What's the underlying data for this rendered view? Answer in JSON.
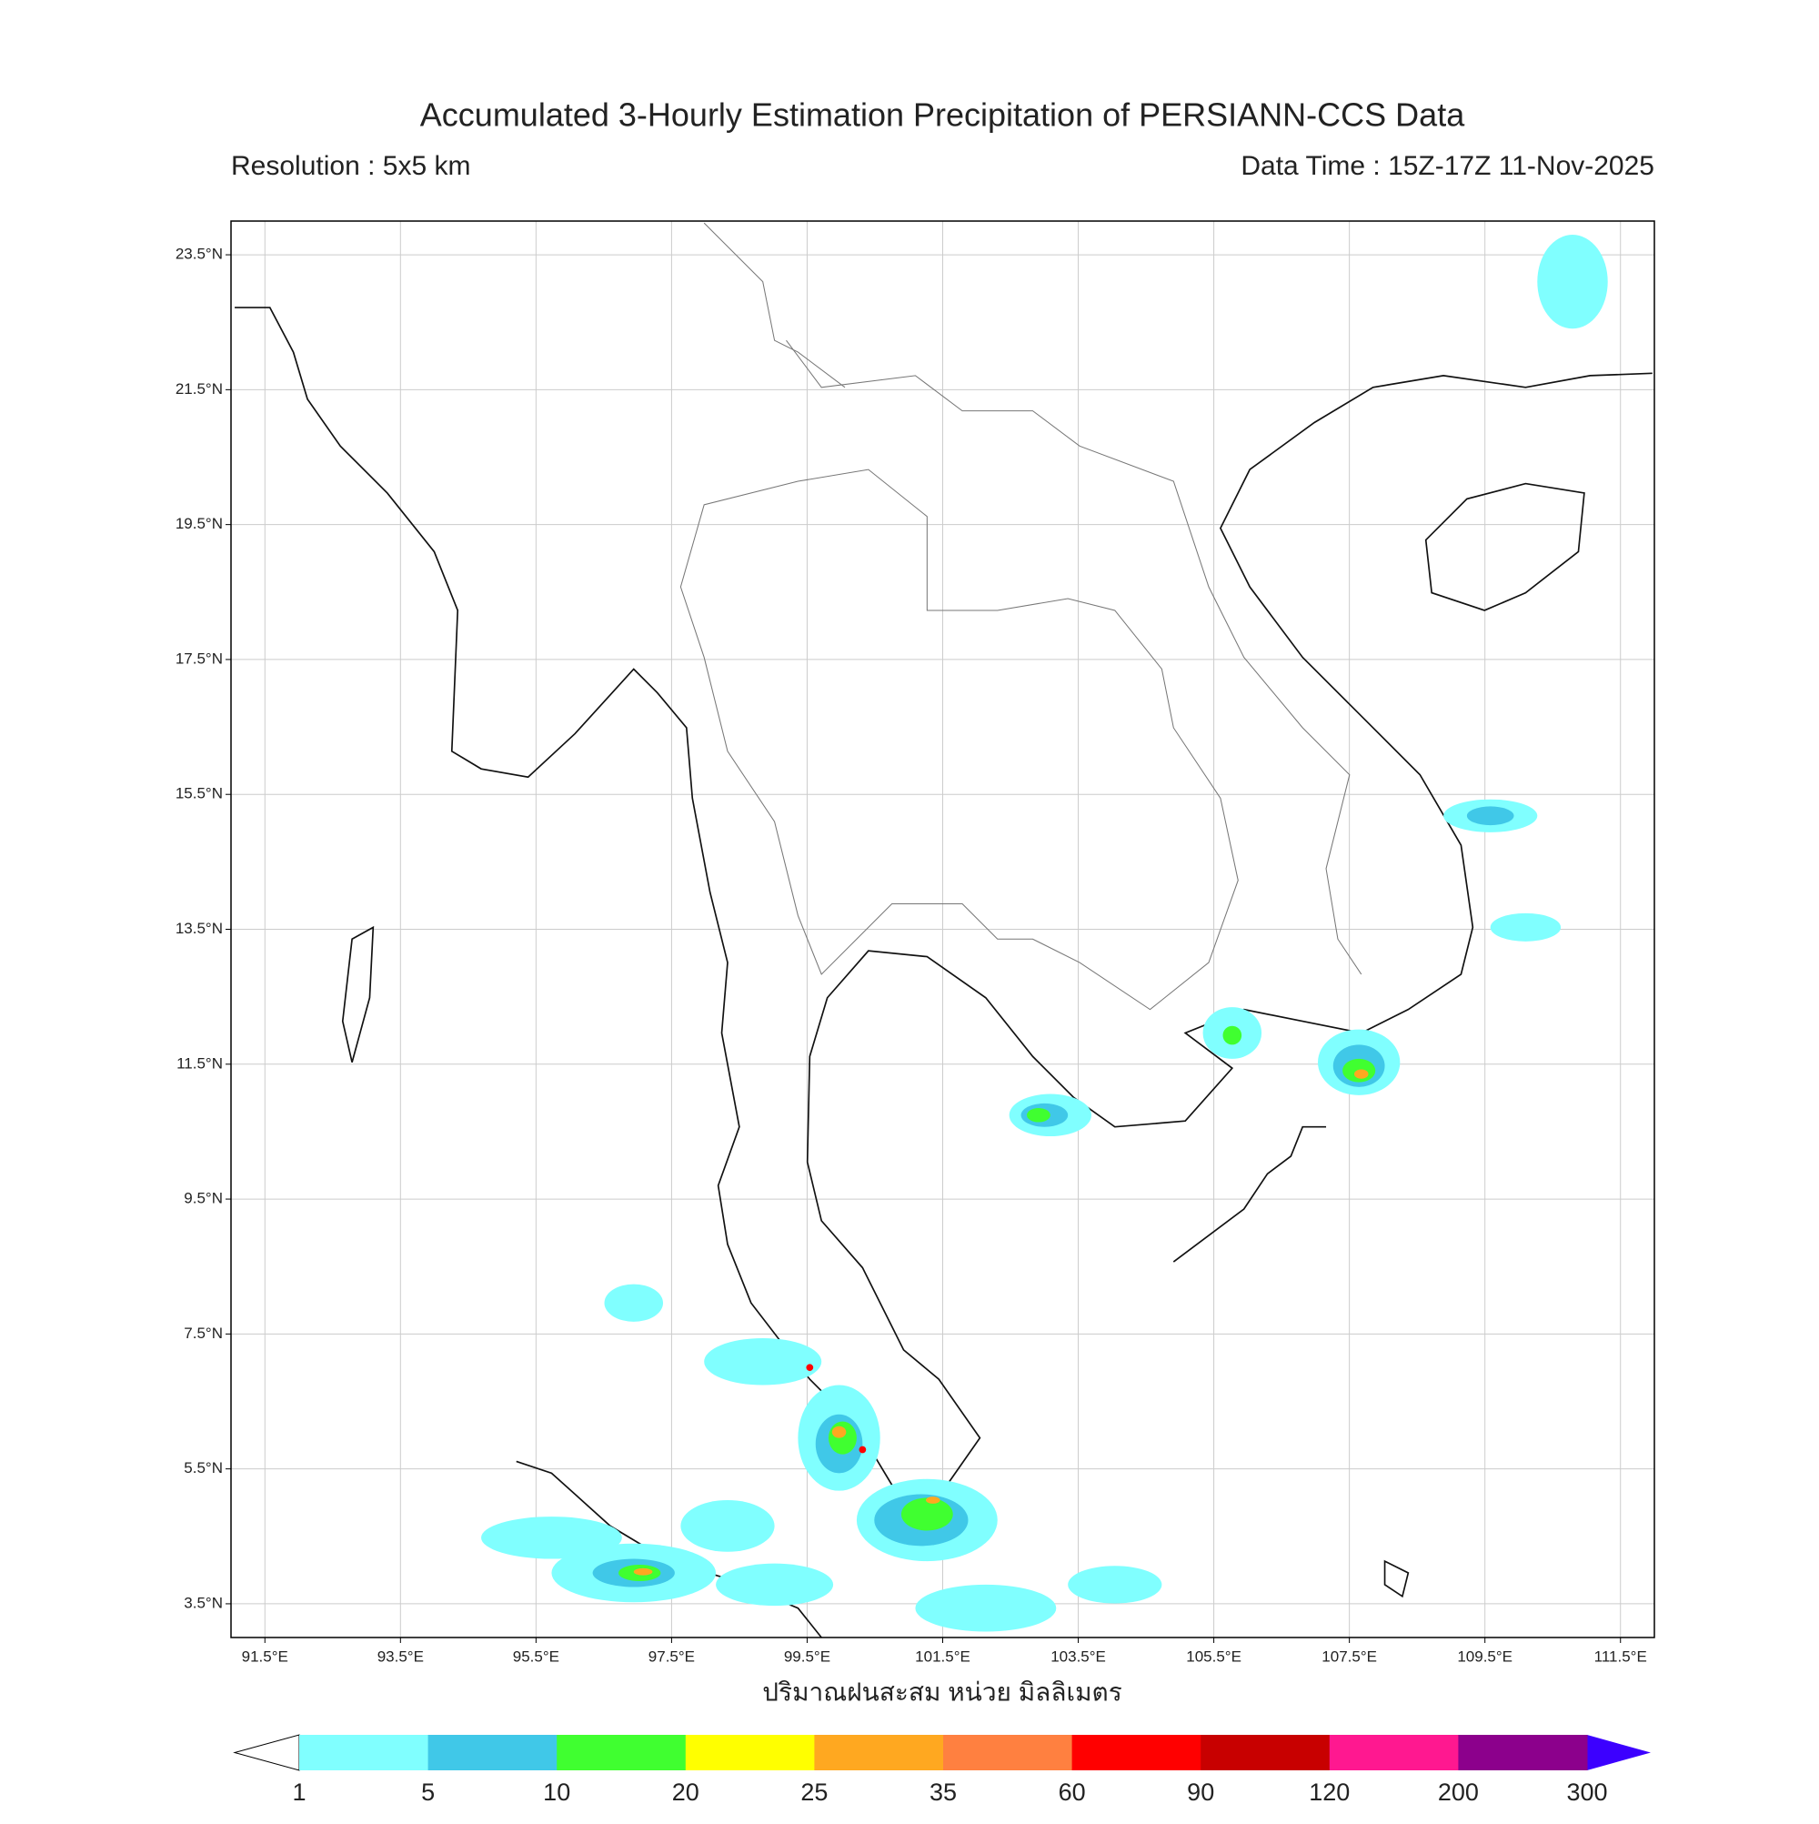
{
  "title": "Accumulated 3-Hourly Estimation Precipitation of PERSIANN-CCS Data",
  "resolution": "Resolution : 5x5 km",
  "data_time": "Data Time : 15Z-17Z 11-Nov-2025",
  "map": {
    "xlim": [
      91,
      112
    ],
    "ylim": [
      3,
      24
    ],
    "lon_ticks": [
      {
        "value": 91.5,
        "label": "91.5°E"
      },
      {
        "value": 93.5,
        "label": "93.5°E"
      },
      {
        "value": 95.5,
        "label": "95.5°E"
      },
      {
        "value": 97.5,
        "label": "97.5°E"
      },
      {
        "value": 99.5,
        "label": "99.5°E"
      },
      {
        "value": 101.5,
        "label": "101.5°E"
      },
      {
        "value": 103.5,
        "label": "103.5°E"
      },
      {
        "value": 105.5,
        "label": "105.5°E"
      },
      {
        "value": 107.5,
        "label": "107.5°E"
      },
      {
        "value": 109.5,
        "label": "109.5°E"
      },
      {
        "value": 111.5,
        "label": "111.5°E"
      }
    ],
    "lat_ticks": [
      {
        "value": 23.5,
        "label": "23.5°N"
      },
      {
        "value": 21.5,
        "label": "21.5°N"
      },
      {
        "value": 19.5,
        "label": "19.5°N"
      },
      {
        "value": 17.5,
        "label": "17.5°N"
      },
      {
        "value": 15.5,
        "label": "15.5°N"
      },
      {
        "value": 13.5,
        "label": "13.5°N"
      },
      {
        "value": 11.5,
        "label": "11.5°N"
      },
      {
        "value": 9.5,
        "label": "9.5°N"
      },
      {
        "value": 7.5,
        "label": "7.5°N"
      },
      {
        "value": 5.5,
        "label": "5.5°N"
      },
      {
        "value": 3.5,
        "label": "3.5°N"
      }
    ],
    "grid": true
  },
  "x_label": "ปริมาณฝนสะสม หน่วย มิลลิเมตร",
  "colorbar": {
    "levels": [
      1,
      5,
      10,
      20,
      25,
      35,
      60,
      90,
      120,
      200,
      300
    ],
    "colors": [
      "#80ffff",
      "#40c8e8",
      "#40ff30",
      "#ffff00",
      "#ffa820",
      "#ff8040",
      "#ff0000",
      "#c80000",
      "#ff1890",
      "#8c008c"
    ],
    "under_color": "#ffffff",
    "over_color": "#3c00ff"
  }
}
